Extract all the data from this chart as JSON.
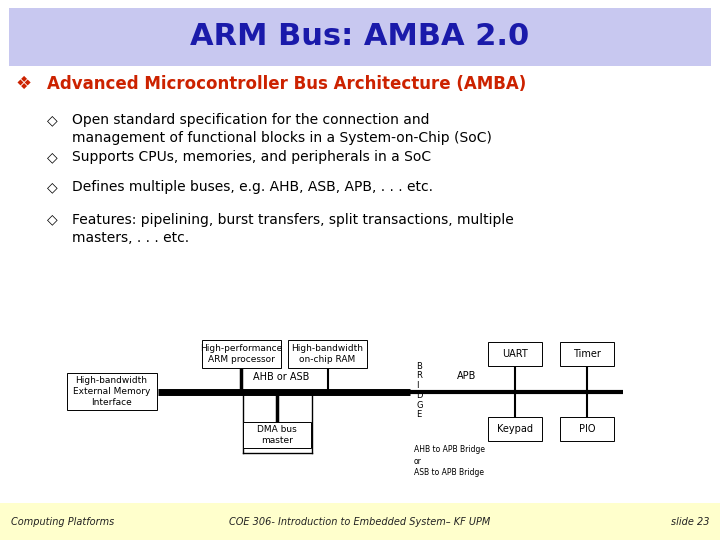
{
  "title": "ARM Bus: AMBA 2.0",
  "title_color": "#1a1aaa",
  "title_bg": "#c8c8f0",
  "bg_color": "#ffffff",
  "footer_bg": "#ffffcc",
  "bullet_main": "Advanced Microcontroller Bus Architecture (AMBA)",
  "bullet_main_color": "#cc2200",
  "bullet_symbol": "❖",
  "sub_bullet_symbol": "◇",
  "sub_bullets": [
    "Open standard specification for the connection and\nmanagement of functional blocks in a System-on-Chip (SoC)",
    "Supports CPUs, memories, and peripherals in a SoC",
    "Defines multiple buses, e.g. AHB, ASB, APB, . . . etc.",
    "Features: pipelining, burst transfers, split transactions, multiple\nmasters, . . . etc."
  ],
  "footer_left": "Computing Platforms",
  "footer_center": "COE 306- Introduction to Embedded System– KF UPM",
  "footer_right": "slide 23"
}
